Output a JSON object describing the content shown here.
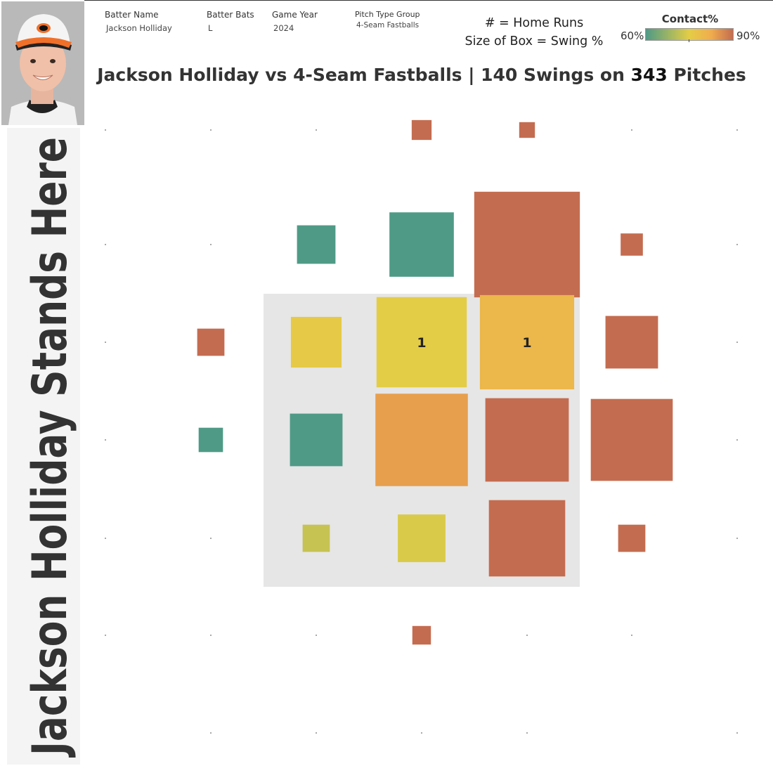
{
  "filters": [
    {
      "label": "Batter Name",
      "value": "Jackson Holliday"
    },
    {
      "label": "Batter Bats",
      "value": "L"
    },
    {
      "label": "Game Year",
      "value": "2024"
    },
    {
      "label": "Pitch Type Group",
      "value": "4-Seam Fastballs"
    }
  ],
  "legend": {
    "line1": "# = Home Runs",
    "line2": "Size of Box = Swing %",
    "color_title": "Contact%",
    "color_min": "60%",
    "color_max": "90%",
    "colors": [
      "#4f9a86",
      "#e4cd46",
      "#f0ac4e",
      "#c46c50"
    ]
  },
  "title": {
    "prefix": "Jackson Holliday vs 4-Seam Fastballs |  140 Swings on ",
    "pitches": "343",
    "suffix": " Pitches"
  },
  "side_label": "Jackson Holliday Stands Here",
  "chart_data": {
    "type": "heatmap",
    "title": "Jackson Holliday vs 4-Seam Fastballs | 140 Swings on 343 Pitches",
    "encoding": {
      "size": "Swing %",
      "color": "Contact%",
      "label": "Home Runs"
    },
    "color_range": [
      60,
      90
    ],
    "columns": 7,
    "rows": 7,
    "strike_zone": {
      "col_range": [
        2,
        4
      ],
      "row_range": [
        2,
        4
      ]
    },
    "cells": [
      {
        "row": 0,
        "col": 3,
        "swing_pct": 8,
        "contact_pct": 90,
        "hr": null
      },
      {
        "row": 0,
        "col": 4,
        "swing_pct": 5,
        "contact_pct": 90,
        "hr": null
      },
      {
        "row": 1,
        "col": 2,
        "swing_pct": 30,
        "contact_pct": 60,
        "hr": null
      },
      {
        "row": 1,
        "col": 3,
        "swing_pct": 84,
        "contact_pct": 60,
        "hr": null
      },
      {
        "row": 1,
        "col": 4,
        "swing_pct": 226,
        "contact_pct": 90,
        "hr": null
      },
      {
        "row": 1,
        "col": 5,
        "swing_pct": 10,
        "contact_pct": 90,
        "hr": null
      },
      {
        "row": 2,
        "col": 1,
        "swing_pct": 15,
        "contact_pct": 90,
        "hr": null
      },
      {
        "row": 2,
        "col": 2,
        "swing_pct": 52,
        "contact_pct": 76,
        "hr": null
      },
      {
        "row": 2,
        "col": 3,
        "swing_pct": 165,
        "contact_pct": 75,
        "hr": 1
      },
      {
        "row": 2,
        "col": 4,
        "swing_pct": 180,
        "contact_pct": 80,
        "hr": 1
      },
      {
        "row": 2,
        "col": 5,
        "swing_pct": 56,
        "contact_pct": 90,
        "hr": null
      },
      {
        "row": 3,
        "col": 1,
        "swing_pct": 12,
        "contact_pct": 60,
        "hr": null
      },
      {
        "row": 3,
        "col": 2,
        "swing_pct": 56,
        "contact_pct": 60,
        "hr": null
      },
      {
        "row": 3,
        "col": 3,
        "swing_pct": 173,
        "contact_pct": 84,
        "hr": null
      },
      {
        "row": 3,
        "col": 4,
        "swing_pct": 141,
        "contact_pct": 90,
        "hr": null
      },
      {
        "row": 3,
        "col": 5,
        "swing_pct": 136,
        "contact_pct": 90,
        "hr": null
      },
      {
        "row": 4,
        "col": 2,
        "swing_pct": 15,
        "contact_pct": 72,
        "hr": null
      },
      {
        "row": 4,
        "col": 3,
        "swing_pct": 46,
        "contact_pct": 74,
        "hr": null
      },
      {
        "row": 4,
        "col": 4,
        "swing_pct": 118,
        "contact_pct": 90,
        "hr": null
      },
      {
        "row": 4,
        "col": 5,
        "swing_pct": 15,
        "contact_pct": 90,
        "hr": null
      },
      {
        "row": 5,
        "col": 3,
        "swing_pct": 7,
        "contact_pct": 90,
        "hr": null
      }
    ],
    "empty_markers": [
      [
        0,
        0
      ],
      [
        0,
        1
      ],
      [
        0,
        2
      ],
      [
        0,
        5
      ],
      [
        0,
        6
      ],
      [
        1,
        0
      ],
      [
        1,
        1
      ],
      [
        1,
        6
      ],
      [
        2,
        0
      ],
      [
        2,
        6
      ],
      [
        3,
        0
      ],
      [
        3,
        6
      ],
      [
        4,
        0
      ],
      [
        4,
        1
      ],
      [
        4,
        6
      ],
      [
        5,
        0
      ],
      [
        5,
        1
      ],
      [
        5,
        2
      ],
      [
        5,
        4
      ],
      [
        5,
        5
      ],
      [
        6,
        1
      ],
      [
        6,
        2
      ],
      [
        6,
        3
      ],
      [
        6,
        4
      ],
      [
        6,
        6
      ]
    ]
  }
}
